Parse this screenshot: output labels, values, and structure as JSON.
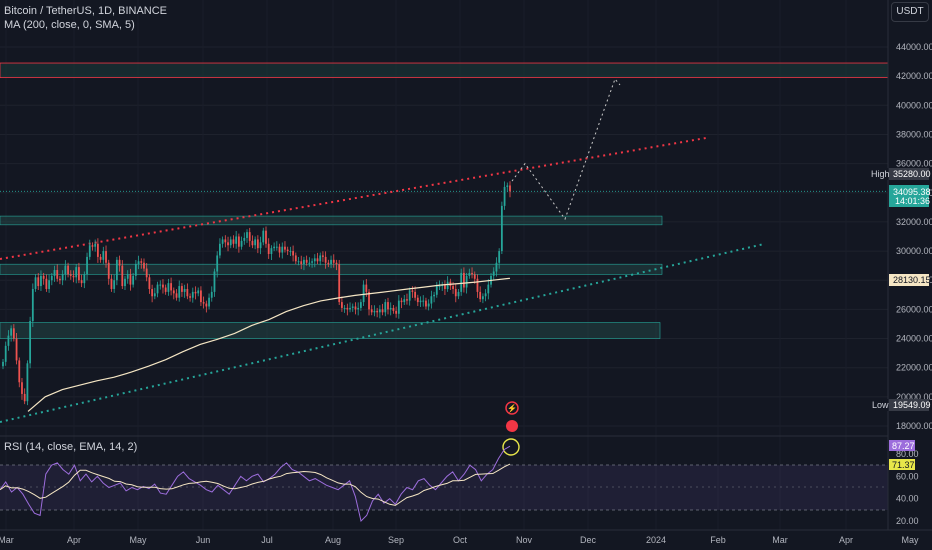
{
  "header": {
    "symbol_line": "Bitcoin / TetherUS, 1D, BINANCE",
    "ma_line": "MA (200, close, 0, SMA, 5)",
    "rsi_line": "RSI (14, close, EMA, 14, 2)",
    "currency_button": "USDT"
  },
  "colors": {
    "background": "#131722",
    "up": "#26a69a",
    "down": "#ef5350",
    "ma": "#f5e6c4",
    "rsi": "#9c6ddc",
    "rsi_ma": "#f5e6c4",
    "resistance_line": "#f23645",
    "support_line": "#26a69a",
    "zone": "#2a5f5a"
  },
  "chart_data": {
    "type": "candlestick",
    "price_axis": {
      "ticks": [
        "44000.00",
        "42000.00",
        "40000.00",
        "38000.00",
        "36000.00",
        "34000.00",
        "32000.00",
        "30000.00",
        "28000.00",
        "26000.00",
        "24000.00",
        "22000.00",
        "20000.00",
        "18000.00"
      ],
      "ylim": [
        17500,
        46000
      ]
    },
    "time_axis": {
      "ticks": [
        "Mar",
        "Apr",
        "May",
        "Jun",
        "Jul",
        "Aug",
        "Sep",
        "Oct",
        "Nov",
        "Dec",
        "2024",
        "Feb",
        "Mar",
        "Apr",
        "May"
      ]
    },
    "price_labels": {
      "high_tag": "High",
      "high_value": "35280.00",
      "current_price": "34095.38",
      "countdown": "14:01:36",
      "ma_value": "28130.15",
      "low_tag": "Low",
      "low_value": "19549.09"
    },
    "rsi_axis": {
      "ticks": [
        "80.00",
        "60.00",
        "40.00",
        "20.00"
      ],
      "rsi_value": "87.27",
      "rsi_ma_value": "71.37"
    },
    "closes": [
      22400,
      23500,
      24200,
      24700,
      24000,
      22500,
      21000,
      20200,
      19700,
      22300,
      25200,
      27400,
      28200,
      27600,
      28300,
      28100,
      27400,
      28000,
      28300,
      28700,
      28100,
      28000,
      28400,
      29000,
      28400,
      28300,
      28200,
      28900,
      28000,
      27800,
      28400,
      29600,
      30400,
      30300,
      30500,
      29600,
      29400,
      30000,
      29200,
      28100,
      27400,
      28000,
      29400,
      29000,
      27600,
      28100,
      28400,
      27700,
      28300,
      29100,
      29300,
      29200,
      28800,
      28200,
      27400,
      26900,
      27100,
      27700,
      27700,
      27500,
      27200,
      27800,
      27300,
      27100,
      26800,
      27600,
      27200,
      27400,
      26900,
      26800,
      27200,
      27100,
      27300,
      26500,
      26400,
      26200,
      26800,
      27200,
      28600,
      29700,
      30500,
      30800,
      30600,
      30400,
      30800,
      30500,
      31000,
      30300,
      30700,
      30900,
      31300,
      30700,
      30400,
      30800,
      30200,
      30600,
      31400,
      30500,
      29800,
      30200,
      30300,
      30300,
      29900,
      30300,
      30100,
      30000,
      30000,
      29700,
      29300,
      29300,
      29100,
      29400,
      29200,
      29200,
      29300,
      29500,
      29300,
      29700,
      29600,
      29200,
      29100,
      29400,
      29200,
      29100,
      26500,
      26100,
      26100,
      26000,
      26100,
      26200,
      26000,
      26100,
      26500,
      27700,
      27200,
      26000,
      25800,
      25900,
      25800,
      26000,
      25800,
      26500,
      26000,
      26100,
      25900,
      25700,
      26600,
      26500,
      26700,
      26600,
      27300,
      27200,
      26800,
      26500,
      26600,
      26600,
      26200,
      26400,
      26900,
      27000,
      27600,
      27600,
      27700,
      27400,
      27900,
      27600,
      27400,
      26900,
      27200,
      28500,
      27500,
      28300,
      28500,
      28400,
      28100,
      27200,
      26700,
      26900,
      27100,
      27700,
      28300,
      28600,
      29200,
      30000,
      33100,
      34400,
      34500,
      34100
    ],
    "ma200": [
      19000,
      20000,
      20500,
      20800,
      21100,
      21350,
      21700,
      22100,
      22550,
      23100,
      23600,
      23950,
      24350,
      24900,
      25300,
      25850,
      26250,
      26580,
      26780,
      26960,
      27100,
      27240,
      27390,
      27530,
      27670,
      27770,
      27870,
      28000,
      28130
    ],
    "rsi": [
      48,
      55,
      46,
      50,
      44,
      35,
      27,
      25,
      62,
      70,
      72,
      66,
      62,
      70,
      56,
      62,
      55,
      60,
      54,
      50,
      52,
      54,
      47,
      50,
      48,
      51,
      49,
      53,
      45,
      44,
      52,
      60,
      64,
      58,
      55,
      52,
      48,
      46,
      52,
      48,
      44,
      52,
      60,
      56,
      60,
      62,
      55,
      58,
      62,
      68,
      72,
      66,
      64,
      60,
      56,
      58,
      55,
      52,
      50,
      48,
      52,
      56,
      42,
      20,
      25,
      38,
      44,
      36,
      40,
      35,
      44,
      50,
      48,
      56,
      58,
      52,
      48,
      54,
      60,
      64,
      56,
      62,
      70,
      66,
      56,
      62,
      66,
      76,
      84,
      87
    ]
  },
  "drawings": {
    "projection_path": "dotted"
  }
}
